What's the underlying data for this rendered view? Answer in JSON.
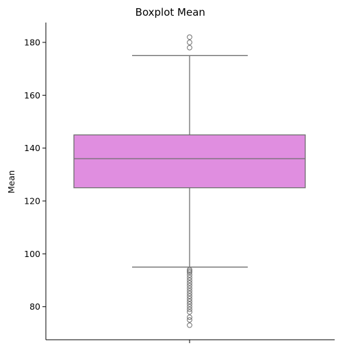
{
  "chart_data": {
    "type": "box",
    "title": "Boxplot Mean",
    "xlabel": "",
    "ylabel": "Mean",
    "ylim": [
      67.5,
      187.5
    ],
    "yticks": [
      80,
      100,
      120,
      140,
      160,
      180
    ],
    "ytick_labels": [
      "80",
      "100",
      "120",
      "140",
      "160",
      "180"
    ],
    "grid": false,
    "box": {
      "q1": 125,
      "median": 136,
      "q3": 145,
      "whisker_low": 95,
      "whisker_high": 175,
      "fill_color": "#e08ee0",
      "line_color": "#6e6e6e"
    },
    "outliers_high": [
      178,
      180,
      182
    ],
    "outliers_low": [
      73,
      75,
      76,
      78,
      79,
      80,
      81,
      82,
      83,
      84,
      85,
      86,
      87,
      88,
      89,
      90,
      91,
      92,
      93,
      93.5,
      94
    ]
  }
}
